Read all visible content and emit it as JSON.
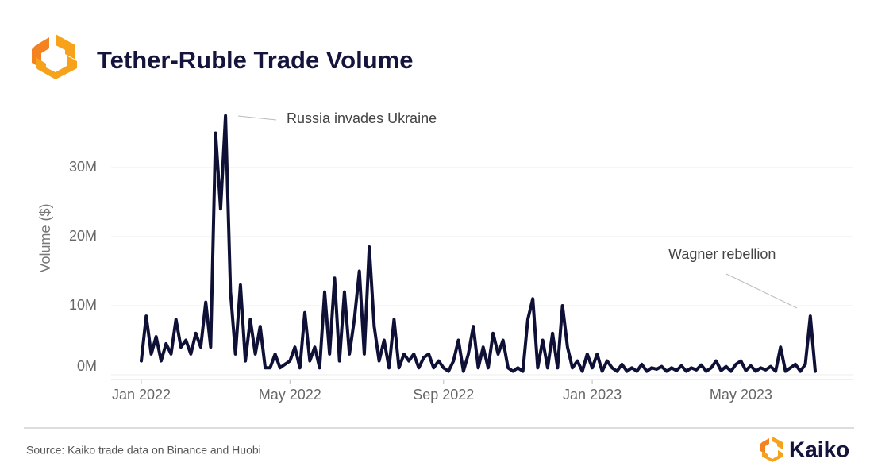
{
  "chart_data": {
    "type": "line",
    "title": "Tether-Ruble Trade Volume",
    "y_label": "Volume ($)",
    "source": "Source: Kaiko trade data on Binance and Huobi",
    "brand": "Kaiko",
    "annotations": [
      "Russia invades Ukraine",
      "Wagner rebellion"
    ],
    "grid": true,
    "color": "#0f1035",
    "ylim": [
      0,
      40000000
    ],
    "yticks": [
      {
        "value": 0,
        "label": "0M"
      },
      {
        "value": 10000000,
        "label": "10M"
      },
      {
        "value": 20000000,
        "label": "20M"
      },
      {
        "value": 30000000,
        "label": "30M"
      }
    ],
    "categories": [
      "Jan 2022",
      null,
      null,
      null,
      null,
      null,
      null,
      null,
      null,
      null,
      null,
      null,
      null,
      null,
      null,
      null,
      null,
      null,
      null,
      null,
      null,
      null,
      null,
      null,
      null,
      null,
      null,
      null,
      null,
      null,
      "May 2022",
      null,
      null,
      null,
      null,
      null,
      null,
      null,
      null,
      null,
      null,
      null,
      null,
      null,
      null,
      null,
      null,
      null,
      null,
      null,
      null,
      null,
      null,
      null,
      null,
      null,
      null,
      null,
      null,
      null,
      null,
      "Sep 2022",
      null,
      null,
      null,
      null,
      null,
      null,
      null,
      null,
      null,
      null,
      null,
      null,
      null,
      null,
      null,
      null,
      null,
      null,
      null,
      null,
      null,
      null,
      null,
      null,
      null,
      null,
      null,
      null,
      null,
      "Jan 2023",
      null,
      null,
      null,
      null,
      null,
      null,
      null,
      null,
      null,
      null,
      null,
      null,
      null,
      null,
      null,
      null,
      null,
      null,
      null,
      null,
      null,
      null,
      null,
      null,
      null,
      null,
      null,
      null,
      null,
      "May 2023",
      null,
      null,
      null,
      null,
      null,
      null,
      null,
      null,
      null,
      null,
      null,
      null,
      null,
      null,
      null
    ],
    "values": [
      2000000,
      8500000,
      3000000,
      5500000,
      2000000,
      4500000,
      3000000,
      8000000,
      4000000,
      5000000,
      3000000,
      6000000,
      4000000,
      10500000,
      4000000,
      35000000,
      24000000,
      37500000,
      12000000,
      3000000,
      13000000,
      2000000,
      8000000,
      3000000,
      7000000,
      1000000,
      1000000,
      3000000,
      1000000,
      1500000,
      2000000,
      4000000,
      1000000,
      9000000,
      2000000,
      4000000,
      1000000,
      12000000,
      3000000,
      14000000,
      2000000,
      12000000,
      3000000,
      8000000,
      15000000,
      3000000,
      18500000,
      7000000,
      2000000,
      5000000,
      1000000,
      8000000,
      1000000,
      3000000,
      2000000,
      3000000,
      1000000,
      2500000,
      3000000,
      1000000,
      2000000,
      1000000,
      500000,
      2000000,
      5000000,
      500000,
      3000000,
      7000000,
      1000000,
      4000000,
      1000000,
      6000000,
      3000000,
      5000000,
      1000000,
      500000,
      1000000,
      500000,
      8000000,
      11000000,
      1000000,
      5000000,
      1000000,
      6000000,
      1000000,
      10000000,
      4000000,
      1000000,
      2000000,
      500000,
      3000000,
      1000000,
      3000000,
      500000,
      2000000,
      1000000,
      500000,
      1500000,
      500000,
      1000000,
      500000,
      1500000,
      500000,
      1000000,
      800000,
      1200000,
      500000,
      1000000,
      600000,
      1300000,
      500000,
      1000000,
      700000,
      1400000,
      500000,
      1000000,
      2000000,
      600000,
      1200000,
      500000,
      1500000,
      2000000,
      600000,
      1300000,
      500000,
      1000000,
      700000,
      1200000,
      500000,
      4000000,
      500000,
      1000000,
      1500000,
      500000,
      1500000,
      8500000,
      500000
    ]
  }
}
